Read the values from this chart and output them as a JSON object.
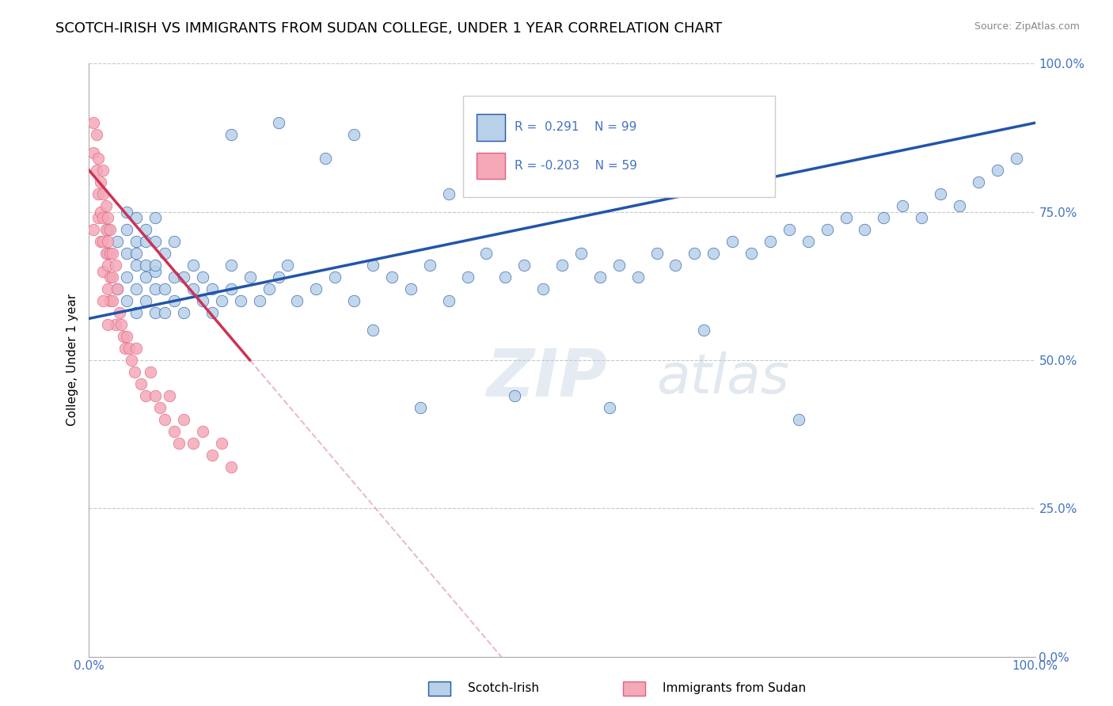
{
  "title": "SCOTCH-IRISH VS IMMIGRANTS FROM SUDAN COLLEGE, UNDER 1 YEAR CORRELATION CHART",
  "source_text": "Source: ZipAtlas.com",
  "ylabel": "College, Under 1 year",
  "xlim": [
    0,
    1
  ],
  "ylim": [
    0,
    1
  ],
  "ytick_labels": [
    "0.0%",
    "25.0%",
    "50.0%",
    "75.0%",
    "100.0%"
  ],
  "ytick_values": [
    0,
    0.25,
    0.5,
    0.75,
    1.0
  ],
  "r_blue": 0.291,
  "n_blue": 99,
  "r_pink": -0.203,
  "n_pink": 59,
  "color_blue": "#b8d0e8",
  "color_pink": "#f4a8b8",
  "line_color_blue": "#2255aa",
  "line_color_pink": "#cc3355",
  "legend_blue": "Scotch-Irish",
  "legend_pink": "Immigrants from Sudan",
  "watermark": "ZIPatlas",
  "title_fontsize": 13,
  "background_color": "#ffffff",
  "blue_x": [
    0.02,
    0.02,
    0.03,
    0.03,
    0.04,
    0.04,
    0.04,
    0.04,
    0.04,
    0.05,
    0.05,
    0.05,
    0.05,
    0.05,
    0.05,
    0.06,
    0.06,
    0.06,
    0.06,
    0.06,
    0.07,
    0.07,
    0.07,
    0.07,
    0.07,
    0.07,
    0.08,
    0.08,
    0.08,
    0.09,
    0.09,
    0.09,
    0.1,
    0.1,
    0.11,
    0.11,
    0.12,
    0.12,
    0.13,
    0.13,
    0.14,
    0.15,
    0.15,
    0.16,
    0.17,
    0.18,
    0.19,
    0.2,
    0.21,
    0.22,
    0.24,
    0.26,
    0.28,
    0.3,
    0.32,
    0.34,
    0.36,
    0.38,
    0.4,
    0.42,
    0.44,
    0.46,
    0.48,
    0.5,
    0.52,
    0.54,
    0.56,
    0.58,
    0.6,
    0.62,
    0.64,
    0.66,
    0.68,
    0.7,
    0.72,
    0.74,
    0.76,
    0.78,
    0.8,
    0.82,
    0.84,
    0.86,
    0.88,
    0.9,
    0.92,
    0.94,
    0.96,
    0.98,
    0.38,
    0.28,
    0.15,
    0.2,
    0.25,
    0.3,
    0.35,
    0.65,
    0.45,
    0.55,
    0.75
  ],
  "blue_y": [
    0.72,
    0.68,
    0.7,
    0.62,
    0.75,
    0.68,
    0.64,
    0.6,
    0.72,
    0.66,
    0.7,
    0.58,
    0.62,
    0.68,
    0.74,
    0.64,
    0.7,
    0.6,
    0.66,
    0.72,
    0.65,
    0.7,
    0.62,
    0.58,
    0.66,
    0.74,
    0.62,
    0.68,
    0.58,
    0.64,
    0.7,
    0.6,
    0.64,
    0.58,
    0.62,
    0.66,
    0.6,
    0.64,
    0.58,
    0.62,
    0.6,
    0.62,
    0.66,
    0.6,
    0.64,
    0.6,
    0.62,
    0.64,
    0.66,
    0.6,
    0.62,
    0.64,
    0.6,
    0.66,
    0.64,
    0.62,
    0.66,
    0.6,
    0.64,
    0.68,
    0.64,
    0.66,
    0.62,
    0.66,
    0.68,
    0.64,
    0.66,
    0.64,
    0.68,
    0.66,
    0.68,
    0.68,
    0.7,
    0.68,
    0.7,
    0.72,
    0.7,
    0.72,
    0.74,
    0.72,
    0.74,
    0.76,
    0.74,
    0.78,
    0.76,
    0.8,
    0.82,
    0.84,
    0.78,
    0.88,
    0.88,
    0.9,
    0.84,
    0.55,
    0.42,
    0.55,
    0.44,
    0.42,
    0.4
  ],
  "pink_x": [
    0.005,
    0.005,
    0.008,
    0.008,
    0.01,
    0.01,
    0.01,
    0.012,
    0.012,
    0.012,
    0.015,
    0.015,
    0.015,
    0.015,
    0.015,
    0.018,
    0.018,
    0.018,
    0.02,
    0.02,
    0.02,
    0.02,
    0.022,
    0.022,
    0.022,
    0.022,
    0.025,
    0.025,
    0.025,
    0.028,
    0.028,
    0.03,
    0.032,
    0.034,
    0.036,
    0.038,
    0.04,
    0.042,
    0.045,
    0.048,
    0.05,
    0.055,
    0.06,
    0.065,
    0.07,
    0.075,
    0.08,
    0.085,
    0.09,
    0.095,
    0.1,
    0.11,
    0.12,
    0.13,
    0.14,
    0.15,
    0.005,
    0.015,
    0.02
  ],
  "pink_y": [
    0.9,
    0.85,
    0.88,
    0.82,
    0.84,
    0.78,
    0.74,
    0.8,
    0.75,
    0.7,
    0.82,
    0.78,
    0.74,
    0.7,
    0.65,
    0.76,
    0.72,
    0.68,
    0.74,
    0.7,
    0.66,
    0.62,
    0.72,
    0.68,
    0.64,
    0.6,
    0.68,
    0.64,
    0.6,
    0.66,
    0.56,
    0.62,
    0.58,
    0.56,
    0.54,
    0.52,
    0.54,
    0.52,
    0.5,
    0.48,
    0.52,
    0.46,
    0.44,
    0.48,
    0.44,
    0.42,
    0.4,
    0.44,
    0.38,
    0.36,
    0.4,
    0.36,
    0.38,
    0.34,
    0.36,
    0.32,
    0.72,
    0.6,
    0.56
  ]
}
